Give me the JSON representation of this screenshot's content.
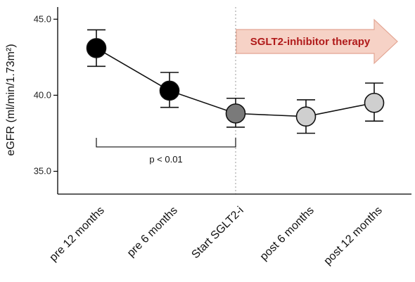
{
  "chart_data": {
    "type": "line",
    "categories": [
      "pre 12 months",
      "pre 6 months",
      "Start SGLT2-i",
      "post 6 months",
      "post 12 months"
    ],
    "values": [
      43.1,
      40.3,
      38.8,
      38.6,
      39.5
    ],
    "error_upper": [
      44.3,
      41.5,
      39.8,
      39.7,
      40.8
    ],
    "error_lower": [
      41.9,
      39.2,
      37.9,
      37.5,
      38.3
    ],
    "marker_colors": [
      "#000000",
      "#000000",
      "#7a7a7a",
      "#cfcfcf",
      "#cfcfcf"
    ],
    "ylabel": "eGFR (ml/min/1.73m²)",
    "ylim": [
      33.5,
      45.8
    ],
    "yticks": [
      35.0,
      40.0,
      45.0
    ],
    "ytick_labels": [
      "35.0",
      "40.0",
      "45.0"
    ],
    "grid": false,
    "annotations": {
      "bracket_label": "p < 0.01",
      "bracket_from": 0,
      "bracket_to": 2,
      "bracket_value": 36.6,
      "therapy_label": "SGLT2-inhibitor therapy",
      "therapy_start_category": 2
    },
    "colors": {
      "line": "#111111",
      "arrow_fill": "#f6d2c6",
      "arrow_stroke": "#e3a593",
      "arrow_text": "#b01a1a",
      "divider": "#999999"
    }
  }
}
